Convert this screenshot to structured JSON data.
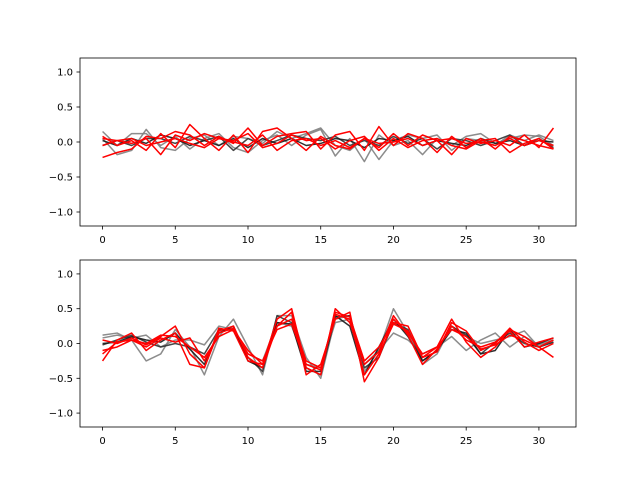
{
  "chart_data": [
    {
      "type": "line",
      "title": "",
      "xlabel": "",
      "ylabel": "",
      "xlim": [
        -1.55,
        32.55
      ],
      "ylim": [
        -1.2,
        1.2
      ],
      "xticks": [
        0,
        5,
        10,
        15,
        20,
        25,
        30
      ],
      "xtick_labels": [
        "0",
        "5",
        "10",
        "15",
        "20",
        "25",
        "30"
      ],
      "yticks": [
        -1.0,
        -0.5,
        0.0,
        0.5,
        1.0
      ],
      "ytick_labels": [
        "−1.0",
        "−0.5",
        "0.0",
        "0.5",
        "1.0"
      ],
      "grid": false,
      "series": [
        {
          "color": "#808080",
          "values": [
            0.15,
            -0.05,
            0.12,
            0.12,
            -0.05,
            0.08,
            -0.1,
            0.05,
            0.12,
            -0.08,
            -0.15,
            0.02,
            0.1,
            -0.05,
            0.1,
            0.18,
            -0.2,
            0.05,
            -0.28,
            0.1,
            -0.05,
            0.02,
            -0.18,
            0.05,
            -0.05,
            0.08,
            0.12,
            -0.02,
            0.05,
            0.1,
            0.08,
            -0.05
          ]
        },
        {
          "color": "#808080",
          "values": [
            0.05,
            -0.18,
            -0.12,
            0.18,
            -0.08,
            -0.12,
            0.05,
            0.1,
            -0.05,
            0.08,
            0.05,
            -0.02,
            0.15,
            0.05,
            0.12,
            0.2,
            -0.05,
            -0.12,
            0.05,
            -0.25,
            0.02,
            0.1,
            0.05,
            0.1,
            -0.12,
            0.05,
            0.02,
            -0.05,
            0.1,
            0.02,
            0.1,
            0.02
          ]
        },
        {
          "color": "#333333",
          "values": [
            -0.05,
            0.02,
            -0.05,
            0.05,
            0.05,
            -0.02,
            0.08,
            0.02,
            0.08,
            -0.12,
            0.05,
            -0.05,
            0.02,
            0.1,
            0.05,
            0.02,
            0.08,
            -0.05,
            0.02,
            -0.05,
            0.08,
            -0.02,
            0.05,
            -0.1,
            0.05,
            0.02,
            -0.05,
            0.02,
            0.1,
            -0.05,
            0.05,
            -0.08
          ]
        },
        {
          "color": "#1a1a1a",
          "values": [
            0.02,
            -0.05,
            0.05,
            -0.02,
            0.1,
            0.05,
            -0.05,
            0.02,
            -0.05,
            0.05,
            -0.08,
            0.05,
            -0.02,
            0.05,
            -0.05,
            -0.02,
            0.05,
            0.02,
            -0.08,
            0.05,
            0.02,
            0.08,
            -0.05,
            0.02,
            -0.02,
            -0.05,
            0.05,
            -0.02,
            0.02,
            -0.05,
            0.02,
            0.0
          ]
        },
        {
          "color": "#ff0000",
          "values": [
            -0.22,
            -0.15,
            -0.1,
            0.08,
            0.05,
            0.15,
            0.1,
            -0.05,
            0.08,
            -0.02,
            0.2,
            -0.05,
            0.08,
            0.12,
            0.15,
            -0.1,
            0.1,
            0.15,
            -0.12,
            0.22,
            -0.05,
            0.12,
            0.05,
            -0.15,
            0.08,
            -0.08,
            0.05,
            -0.1,
            0.08,
            0.02,
            -0.05,
            -0.1
          ]
        },
        {
          "color": "#ff0000",
          "values": [
            0.08,
            -0.05,
            0.02,
            -0.12,
            0.12,
            -0.08,
            0.25,
            0.05,
            -0.12,
            0.1,
            -0.15,
            0.15,
            0.2,
            0.05,
            -0.12,
            0.08,
            -0.05,
            -0.1,
            0.05,
            -0.08,
            0.12,
            -0.05,
            0.1,
            0.02,
            -0.18,
            0.05,
            -0.02,
            0.02,
            -0.05,
            0.1,
            -0.08,
            0.2
          ]
        },
        {
          "color": "#ff0000",
          "values": [
            -0.05,
            0.02,
            -0.02,
            0.05,
            -0.18,
            0.1,
            0.02,
            0.12,
            0.05,
            0.02,
            0.12,
            -0.08,
            -0.02,
            0.1,
            0.02,
            0.05,
            -0.1,
            0.02,
            0.08,
            -0.12,
            0.05,
            -0.08,
            0.02,
            0.05,
            -0.05,
            -0.1,
            0.02,
            0.05,
            -0.15,
            -0.02,
            0.05,
            -0.1
          ]
        },
        {
          "color": "#ff0000",
          "values": [
            0.05,
            0.02,
            0.05,
            -0.05,
            0.0,
            0.05,
            -0.02,
            -0.08,
            0.05,
            0.0,
            -0.05,
            0.1,
            -0.12,
            0.02,
            0.05,
            -0.05,
            0.02,
            -0.08,
            0.05,
            -0.02,
            0.0,
            0.05,
            -0.05,
            0.02,
            0.05,
            -0.02,
            0.0,
            -0.05,
            0.05,
            -0.05,
            0.02,
            -0.05
          ]
        }
      ]
    },
    {
      "type": "line",
      "title": "",
      "xlabel": "",
      "ylabel": "",
      "xlim": [
        -1.55,
        32.55
      ],
      "ylim": [
        -1.2,
        1.2
      ],
      "xticks": [
        0,
        5,
        10,
        15,
        20,
        25,
        30
      ],
      "xtick_labels": [
        "0",
        "5",
        "10",
        "15",
        "20",
        "25",
        "30"
      ],
      "yticks": [
        -1.0,
        -0.5,
        0.0,
        0.5,
        1.0
      ],
      "ytick_labels": [
        "−1.0",
        "−0.5",
        "0.0",
        "0.5",
        "1.0"
      ],
      "grid": false,
      "series": [
        {
          "color": "#808080",
          "values": [
            0.12,
            0.15,
            0.05,
            -0.25,
            -0.15,
            0.2,
            -0.05,
            -0.45,
            0.1,
            0.35,
            -0.05,
            -0.45,
            0.4,
            0.4,
            -0.2,
            -0.5,
            0.35,
            0.4,
            -0.3,
            -0.1,
            0.5,
            0.15,
            -0.3,
            -0.15,
            0.25,
            0.1,
            0.0,
            0.05,
            0.1,
            0.18,
            -0.05,
            0.02
          ]
        },
        {
          "color": "#808080",
          "values": [
            0.08,
            0.12,
            0.08,
            0.12,
            -0.05,
            0.05,
            0.05,
            -0.02,
            0.25,
            0.2,
            -0.15,
            -0.25,
            0.3,
            0.25,
            -0.3,
            -0.35,
            0.3,
            0.35,
            -0.4,
            -0.1,
            0.15,
            0.05,
            -0.15,
            -0.05,
            0.1,
            -0.1,
            0.05,
            0.15,
            -0.05,
            0.1,
            -0.02,
            0.05
          ]
        },
        {
          "color": "#333333",
          "values": [
            -0.02,
            0.05,
            0.12,
            0.02,
            -0.05,
            0.0,
            -0.05,
            -0.15,
            0.2,
            0.2,
            -0.2,
            -0.4,
            0.4,
            0.3,
            -0.35,
            -0.45,
            0.38,
            0.4,
            -0.35,
            -0.2,
            0.3,
            0.2,
            -0.25,
            -0.1,
            0.25,
            0.12,
            -0.15,
            0.02,
            0.15,
            0.0,
            -0.05,
            0.02
          ]
        },
        {
          "color": "#1a1a1a",
          "values": [
            0.0,
            0.02,
            0.1,
            0.05,
            0.02,
            0.15,
            -0.08,
            -0.3,
            0.15,
            0.25,
            -0.25,
            -0.35,
            0.3,
            0.28,
            -0.4,
            -0.4,
            0.4,
            0.25,
            -0.45,
            -0.05,
            0.35,
            0.1,
            -0.25,
            -0.1,
            0.2,
            0.15,
            -0.15,
            -0.1,
            0.2,
            -0.05,
            0.0,
            0.08
          ]
        },
        {
          "color": "#ff0000",
          "values": [
            -0.25,
            0.05,
            0.15,
            -0.1,
            0.05,
            0.15,
            -0.3,
            -0.35,
            0.18,
            0.25,
            -0.2,
            -0.35,
            0.25,
            0.45,
            -0.45,
            -0.3,
            0.35,
            0.45,
            -0.55,
            -0.2,
            0.35,
            0.15,
            -0.15,
            -0.05,
            0.35,
            0.02,
            -0.2,
            -0.05,
            0.2,
            0.1,
            -0.05,
            -0.2
          ]
        },
        {
          "color": "#ff0000",
          "values": [
            0.05,
            0.0,
            0.08,
            -0.02,
            0.1,
            0.25,
            -0.15,
            -0.35,
            0.22,
            0.18,
            -0.25,
            -0.3,
            0.35,
            0.5,
            -0.35,
            -0.45,
            0.5,
            0.3,
            -0.3,
            -0.12,
            0.4,
            0.12,
            -0.3,
            -0.08,
            0.25,
            0.05,
            -0.05,
            0.02,
            0.18,
            -0.05,
            0.02,
            0.08
          ]
        },
        {
          "color": "#ff0000",
          "values": [
            -0.1,
            -0.05,
            0.05,
            -0.05,
            0.08,
            0.02,
            0.08,
            -0.25,
            0.15,
            0.22,
            -0.15,
            -0.25,
            0.2,
            0.28,
            -0.3,
            -0.38,
            0.45,
            0.38,
            -0.25,
            -0.05,
            0.3,
            0.25,
            -0.2,
            -0.12,
            0.3,
            0.18,
            -0.1,
            0.0,
            0.22,
            0.02,
            -0.1,
            0.0
          ]
        },
        {
          "color": "#ff0000",
          "values": [
            -0.15,
            0.02,
            0.05,
            0.0,
            0.12,
            0.1,
            -0.05,
            -0.2,
            0.1,
            0.2,
            -0.1,
            -0.3,
            0.25,
            0.35,
            -0.25,
            -0.35,
            0.42,
            0.35,
            -0.45,
            -0.15,
            0.28,
            0.18,
            -0.2,
            -0.05,
            0.2,
            0.1,
            -0.08,
            -0.02,
            0.12,
            0.05,
            -0.05,
            0.05
          ]
        }
      ]
    }
  ]
}
